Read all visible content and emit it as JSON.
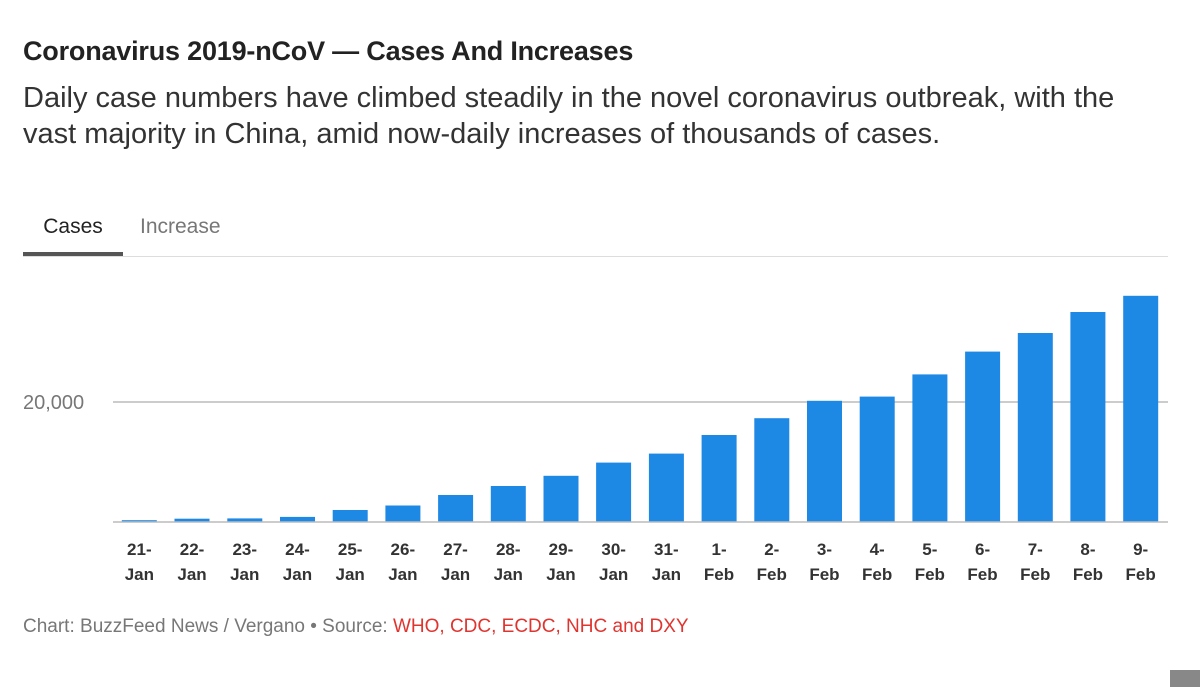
{
  "title": "Coronavirus 2019-nCoV — Cases And Increases",
  "subtitle": "Daily case numbers have climbed steadily in the novel coronavirus outbreak, with the vast majority in China, amid now-daily increases of thousands of cases.",
  "tabs": [
    {
      "label": "Cases",
      "active": true
    },
    {
      "label": "Increase",
      "active": false
    }
  ],
  "footer": {
    "credit": "Chart: BuzzFeed News / Vergano • Source: ",
    "source": "WHO, CDC, ECDC, NHC and DXY"
  },
  "colors": {
    "bar": "#1e88e5",
    "source": "#e0342f",
    "gridline": "#bbbbbb"
  },
  "chart_data": {
    "type": "bar",
    "categories": [
      [
        "21-",
        "Jan"
      ],
      [
        "22-",
        "Jan"
      ],
      [
        "23-",
        "Jan"
      ],
      [
        "24-",
        "Jan"
      ],
      [
        "25-",
        "Jan"
      ],
      [
        "26-",
        "Jan"
      ],
      [
        "27-",
        "Jan"
      ],
      [
        "28-",
        "Jan"
      ],
      [
        "29-",
        "Jan"
      ],
      [
        "30-",
        "Jan"
      ],
      [
        "31-",
        "Jan"
      ],
      [
        "1-",
        "Feb"
      ],
      [
        "2-",
        "Feb"
      ],
      [
        "3-",
        "Feb"
      ],
      [
        "4-",
        "Feb"
      ],
      [
        "5-",
        "Feb"
      ],
      [
        "6-",
        "Feb"
      ],
      [
        "7-",
        "Feb"
      ],
      [
        "8-",
        "Feb"
      ],
      [
        "9-",
        "Feb"
      ]
    ],
    "values": [
      300,
      550,
      600,
      850,
      2000,
      2750,
      4500,
      6000,
      7700,
      9900,
      11400,
      14500,
      17300,
      20200,
      20900,
      24600,
      28400,
      31500,
      35000,
      37700
    ],
    "yticks": [
      {
        "value": 20000,
        "label": "20,000"
      }
    ],
    "ylim": [
      0,
      40000
    ],
    "xlabel": "",
    "ylabel": "",
    "grid": true
  }
}
